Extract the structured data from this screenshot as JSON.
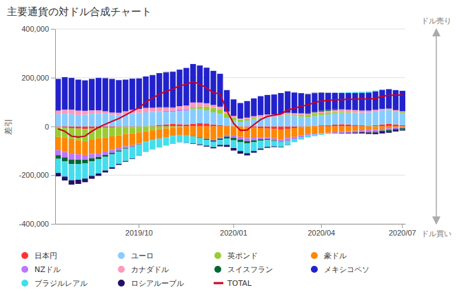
{
  "chart_data": {
    "type": "bar",
    "stacked": true,
    "title": "主要通貨の対ドル合成チャート",
    "ylabel": "差引",
    "categories": [
      null,
      null,
      null,
      null,
      null,
      null,
      null,
      null,
      null,
      null,
      null,
      null,
      "2019/10",
      null,
      null,
      null,
      null,
      null,
      null,
      null,
      null,
      null,
      null,
      null,
      null,
      null,
      "2020/01",
      null,
      null,
      null,
      null,
      null,
      null,
      null,
      null,
      null,
      null,
      null,
      null,
      "2020/04",
      null,
      null,
      null,
      null,
      null,
      null,
      null,
      null,
      null,
      null,
      null,
      "2020/07"
    ],
    "series": [
      {
        "name": "日本円",
        "color": "#FF3333",
        "values": [
          -3000,
          -5000,
          -7000,
          -9000,
          -11000,
          -9000,
          -7000,
          -5000,
          -4000,
          -3000,
          -2000,
          -2000,
          -1000,
          0,
          3000,
          6000,
          8000,
          10000,
          9000,
          7000,
          10000,
          13000,
          12000,
          8000,
          5000,
          3000,
          1000,
          -1000,
          -3000,
          -5000,
          -7000,
          -9000,
          -11000,
          -13000,
          -10000,
          -7000,
          -3000,
          0,
          2000,
          4000,
          5000,
          7000,
          9000,
          8000,
          6000,
          4000,
          3000,
          5000,
          8000,
          10000,
          8000,
          5000
        ]
      },
      {
        "name": "ユーロ",
        "color": "#88CCFF",
        "values": [
          50000,
          52000,
          50000,
          47000,
          48000,
          52000,
          54000,
          52000,
          48000,
          46000,
          50000,
          54000,
          56000,
          58000,
          56000,
          54000,
          52000,
          50000,
          54000,
          58000,
          62000,
          58000,
          54000,
          50000,
          46000,
          32000,
          22000,
          18000,
          24000,
          30000,
          34000,
          38000,
          40000,
          42000,
          45000,
          42000,
          40000,
          38000,
          40000,
          42000,
          44000,
          46000,
          47000,
          48000,
          50000,
          52000,
          54000,
          56000,
          58000,
          56000,
          52000,
          50000
        ]
      },
      {
        "name": "英ポンド",
        "color": "#99CC33",
        "values": [
          -40000,
          -42000,
          -45000,
          -48000,
          -50000,
          -46000,
          -42000,
          -40000,
          -37000,
          -34000,
          -30000,
          -27000,
          -24000,
          -20000,
          -16000,
          -12000,
          -8000,
          -5000,
          -3000,
          0,
          5000,
          10000,
          15000,
          18000,
          20000,
          18000,
          14000,
          10000,
          7000,
          5000,
          3000,
          1000,
          0,
          2000,
          4000,
          6000,
          8000,
          9000,
          10000,
          9000,
          8000,
          6000,
          4000,
          2000,
          1000,
          0,
          -1000,
          -2000,
          0,
          2000,
          3000,
          4000
        ]
      },
      {
        "name": "豪ドル",
        "color": "#FF8800",
        "values": [
          -55000,
          -58000,
          -60000,
          -58000,
          -56000,
          -58000,
          -60000,
          -58000,
          -55000,
          -52000,
          -50000,
          -48000,
          -45000,
          -42000,
          -40000,
          -38000,
          -36000,
          -34000,
          -32000,
          -36000,
          -40000,
          -45000,
          -50000,
          -55000,
          -45000,
          -35000,
          -38000,
          -42000,
          -45000,
          -42000,
          -38000,
          -36000,
          -38000,
          -40000,
          -38000,
          -36000,
          -34000,
          -32000,
          -30000,
          -28000,
          -26000,
          -24000,
          -22000,
          -20000,
          -18000,
          -16000,
          -14000,
          -12000,
          -10000,
          -8000,
          -5000,
          -3000
        ]
      },
      {
        "name": "NZドル",
        "color": "#BB77FF",
        "values": [
          -20000,
          -22000,
          -24000,
          -22000,
          -20000,
          -18000,
          -16000,
          -14000,
          -12000,
          -10000,
          -8000,
          -6000,
          -4000,
          -2000,
          0,
          2000,
          4000,
          5000,
          6000,
          5000,
          3000,
          1000,
          -1000,
          -3000,
          -5000,
          -7000,
          -9000,
          -11000,
          -12000,
          -10000,
          -8000,
          -7000,
          -8000,
          -10000,
          -11000,
          -9000,
          -7000,
          -5000,
          -4000,
          -3000,
          -3000,
          -4000,
          -5000,
          -6000,
          -7000,
          -7000,
          -8000,
          -8000,
          -7000,
          -6000,
          -5000,
          -4000
        ]
      },
      {
        "name": "カナダドル",
        "color": "#FF99BB",
        "values": [
          15000,
          17000,
          19000,
          18000,
          16000,
          14000,
          12000,
          10000,
          9000,
          10000,
          12000,
          14000,
          16000,
          18000,
          17000,
          15000,
          13000,
          12000,
          14000,
          16000,
          18000,
          16000,
          14000,
          12000,
          10000,
          8000,
          6000,
          4000,
          5000,
          7000,
          9000,
          10000,
          9000,
          8000,
          7000,
          6000,
          5000,
          4000,
          5000,
          6000,
          7000,
          8000,
          9000,
          10000,
          10000,
          9000,
          8000,
          7000,
          6000,
          5000,
          4000,
          3000
        ]
      },
      {
        "name": "スイスフラン",
        "color": "#006633",
        "values": [
          -15000,
          -17000,
          -19000,
          -18000,
          -15000,
          -12000,
          -10000,
          -8000,
          -6000,
          -4000,
          -3000,
          -2000,
          -1000,
          0,
          1000,
          2000,
          2000,
          1000,
          0,
          -1000,
          -2000,
          -3000,
          -4000,
          -5000,
          -6000,
          -8000,
          -10000,
          -11000,
          -10000,
          -8000,
          -6000,
          -4000,
          -3000,
          -2000,
          -1000,
          0,
          1000,
          2000,
          3000,
          4000,
          4000,
          3000,
          2000,
          1000,
          0,
          -1000,
          -2000,
          -3000,
          -4000,
          -5000,
          -5000,
          -4000
        ]
      },
      {
        "name": "メキシコペソ",
        "color": "#2222CC",
        "values": [
          130000,
          133000,
          130000,
          127000,
          125000,
          129000,
          133000,
          136000,
          138000,
          134000,
          130000,
          128000,
          125000,
          129000,
          133000,
          138000,
          142000,
          146000,
          150000,
          154000,
          158000,
          152000,
          146000,
          140000,
          135000,
          88000,
          68000,
          64000,
          68000,
          73000,
          78000,
          80000,
          82000,
          85000,
          88000,
          85000,
          82000,
          78000,
          76000,
          73000,
          70000,
          68000,
          66000,
          68000,
          70000,
          72000,
          74000,
          76000,
          78000,
          80000,
          82000,
          84000
        ]
      },
      {
        "name": "ブラジルレアル",
        "color": "#44DDEE",
        "values": [
          -58000,
          -62000,
          -66000,
          -64000,
          -62000,
          -60000,
          -58000,
          -56000,
          -54000,
          -51000,
          -49000,
          -47000,
          -44000,
          -41000,
          -39000,
          -37000,
          -35000,
          -33000,
          -31000,
          -30000,
          -28000,
          -26000,
          -24000,
          -22000,
          -20000,
          -26000,
          -32000,
          -36000,
          -40000,
          -36000,
          -32000,
          -28000,
          -22000,
          -19000,
          -16000,
          -13000,
          -10000,
          -8000,
          -6000,
          -4000,
          -2000,
          0,
          2000,
          3000,
          4000,
          5000,
          4000,
          3000,
          2000,
          1000,
          0,
          -1000
        ]
      },
      {
        "name": "ロシアルーブル",
        "color": "#221166",
        "values": [
          -14000,
          -16000,
          -18000,
          -17000,
          -15000,
          -12000,
          -10000,
          -8000,
          -6000,
          -4000,
          -3000,
          -2000,
          -1000,
          0,
          1000,
          2000,
          2000,
          1000,
          0,
          -1000,
          -2000,
          -3000,
          -4000,
          -5000,
          -6000,
          -8000,
          -10000,
          -11000,
          -9000,
          -7000,
          -5000,
          -4000,
          -3000,
          -2000,
          -1000,
          0,
          1000,
          2000,
          2000,
          1000,
          0,
          -1000,
          -2000,
          -3000,
          -4000,
          -5000,
          -6000,
          -7000,
          -8000,
          -7000,
          -6000,
          -5000
        ]
      },
      {
        "name": "TOTAL",
        "type": "line",
        "color": "#CC0022",
        "values": [
          -10000,
          -20000,
          -40000,
          -44000,
          -40000,
          -20000,
          -4000,
          9000,
          21000,
          32000,
          47000,
          62000,
          77000,
          100000,
          116000,
          132000,
          144000,
          153000,
          167000,
          172000,
          184000,
          173000,
          158000,
          138000,
          134000,
          65000,
          12000,
          -16000,
          -15000,
          7000,
          28000,
          41000,
          46000,
          51000,
          67000,
          74000,
          83000,
          88000,
          98000,
          104000,
          107000,
          109000,
          110000,
          111000,
          112000,
          113000,
          112000,
          115000,
          123000,
          128000,
          128000,
          129000
        ]
      }
    ],
    "ylim": [
      -400000,
      400000
    ],
    "yticks": [
      {
        "value": -400000,
        "label": "-400,000"
      },
      {
        "value": -200000,
        "label": "-200,000"
      },
      0,
      {
        "value": 200000,
        "label": "200,000"
      },
      {
        "value": 400000,
        "label": "400,000"
      }
    ],
    "grid": true,
    "legend": "bottom",
    "annotations": [
      "ドル売り",
      "ドル買い"
    ]
  }
}
